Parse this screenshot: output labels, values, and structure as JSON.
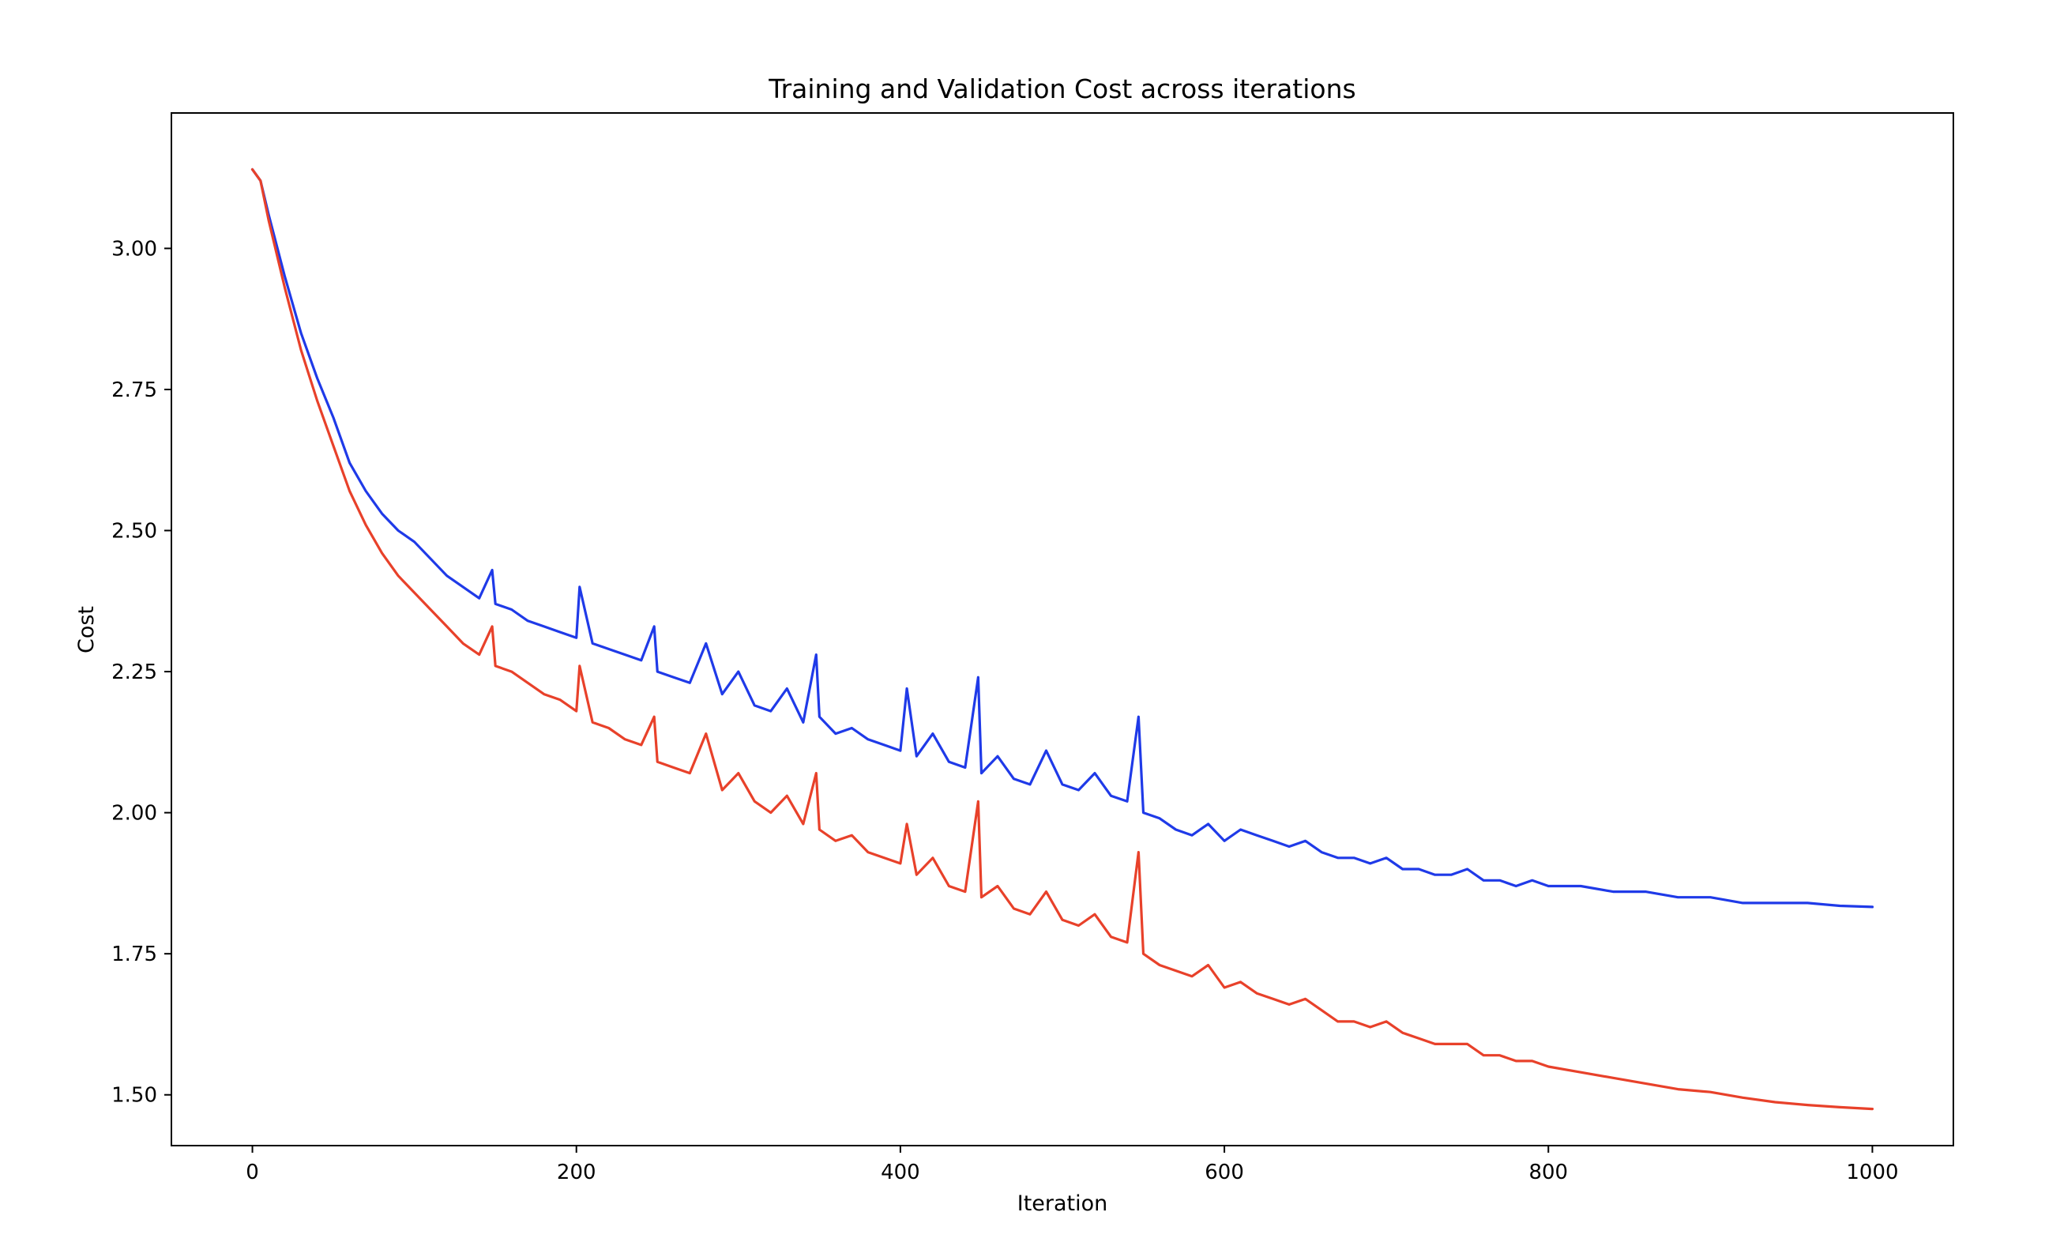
{
  "chart_data": {
    "type": "line",
    "title": "Training and Validation Cost across iterations",
    "xlabel": "Iteration",
    "ylabel": "Cost",
    "xlim": [
      -50,
      1050
    ],
    "ylim": [
      1.41,
      3.24
    ],
    "xticks": [
      0,
      200,
      400,
      600,
      800,
      1000
    ],
    "xtick_labels": [
      "0",
      "200",
      "400",
      "600",
      "800",
      "1000"
    ],
    "yticks": [
      1.5,
      1.75,
      2.0,
      2.25,
      2.5,
      2.75,
      3.0
    ],
    "ytick_labels": [
      "1.50",
      "1.75",
      "2.00",
      "2.25",
      "2.50",
      "2.75",
      "3.00"
    ],
    "grid": false,
    "legend": "none",
    "series": [
      {
        "color": "#1f3ae8",
        "x": [
          0,
          5,
          10,
          20,
          30,
          40,
          50,
          60,
          70,
          80,
          90,
          100,
          110,
          120,
          130,
          140,
          148,
          150,
          160,
          170,
          180,
          190,
          200,
          202,
          210,
          220,
          230,
          240,
          248,
          250,
          260,
          270,
          280,
          290,
          300,
          310,
          320,
          330,
          340,
          348,
          350,
          360,
          370,
          380,
          390,
          400,
          404,
          410,
          420,
          430,
          440,
          448,
          450,
          460,
          470,
          480,
          490,
          500,
          510,
          520,
          530,
          540,
          547,
          550,
          560,
          570,
          580,
          590,
          600,
          610,
          620,
          630,
          640,
          650,
          660,
          670,
          680,
          690,
          700,
          710,
          720,
          730,
          740,
          750,
          760,
          770,
          780,
          790,
          800,
          820,
          840,
          860,
          880,
          900,
          920,
          940,
          960,
          980,
          1000
        ],
        "y": [
          3.14,
          3.12,
          3.06,
          2.95,
          2.85,
          2.77,
          2.7,
          2.62,
          2.57,
          2.53,
          2.5,
          2.48,
          2.45,
          2.42,
          2.4,
          2.38,
          2.43,
          2.37,
          2.36,
          2.34,
          2.33,
          2.32,
          2.31,
          2.4,
          2.3,
          2.29,
          2.28,
          2.27,
          2.33,
          2.25,
          2.24,
          2.23,
          2.3,
          2.21,
          2.25,
          2.19,
          2.18,
          2.22,
          2.16,
          2.28,
          2.17,
          2.14,
          2.15,
          2.13,
          2.12,
          2.11,
          2.22,
          2.1,
          2.14,
          2.09,
          2.08,
          2.24,
          2.07,
          2.1,
          2.06,
          2.05,
          2.11,
          2.05,
          2.04,
          2.07,
          2.03,
          2.02,
          2.17,
          2.0,
          1.99,
          1.97,
          1.96,
          1.98,
          1.95,
          1.97,
          1.96,
          1.95,
          1.94,
          1.95,
          1.93,
          1.92,
          1.92,
          1.91,
          1.92,
          1.9,
          1.9,
          1.89,
          1.89,
          1.9,
          1.88,
          1.88,
          1.87,
          1.88,
          1.87,
          1.87,
          1.86,
          1.86,
          1.85,
          1.85,
          1.84,
          1.84,
          1.84,
          1.835,
          1.833
        ]
      },
      {
        "color": "#e8412a",
        "x": [
          0,
          5,
          10,
          20,
          30,
          40,
          50,
          60,
          70,
          80,
          90,
          100,
          110,
          120,
          130,
          140,
          148,
          150,
          160,
          170,
          180,
          190,
          200,
          202,
          210,
          220,
          230,
          240,
          248,
          250,
          260,
          270,
          280,
          290,
          300,
          310,
          320,
          330,
          340,
          348,
          350,
          360,
          370,
          380,
          390,
          400,
          404,
          410,
          420,
          430,
          440,
          448,
          450,
          460,
          470,
          480,
          490,
          500,
          510,
          520,
          530,
          540,
          547,
          550,
          560,
          570,
          580,
          590,
          600,
          610,
          620,
          630,
          640,
          650,
          660,
          670,
          680,
          690,
          700,
          710,
          720,
          730,
          740,
          750,
          760,
          770,
          780,
          790,
          800,
          820,
          840,
          860,
          880,
          900,
          920,
          940,
          960,
          980,
          1000
        ],
        "y": [
          3.14,
          3.12,
          3.05,
          2.93,
          2.82,
          2.73,
          2.65,
          2.57,
          2.51,
          2.46,
          2.42,
          2.39,
          2.36,
          2.33,
          2.3,
          2.28,
          2.33,
          2.26,
          2.25,
          2.23,
          2.21,
          2.2,
          2.18,
          2.26,
          2.16,
          2.15,
          2.13,
          2.12,
          2.17,
          2.09,
          2.08,
          2.07,
          2.14,
          2.04,
          2.07,
          2.02,
          2.0,
          2.03,
          1.98,
          2.07,
          1.97,
          1.95,
          1.96,
          1.93,
          1.92,
          1.91,
          1.98,
          1.89,
          1.92,
          1.87,
          1.86,
          2.02,
          1.85,
          1.87,
          1.83,
          1.82,
          1.86,
          1.81,
          1.8,
          1.82,
          1.78,
          1.77,
          1.93,
          1.75,
          1.73,
          1.72,
          1.71,
          1.73,
          1.69,
          1.7,
          1.68,
          1.67,
          1.66,
          1.67,
          1.65,
          1.63,
          1.63,
          1.62,
          1.63,
          1.61,
          1.6,
          1.59,
          1.59,
          1.59,
          1.57,
          1.57,
          1.56,
          1.56,
          1.55,
          1.54,
          1.53,
          1.52,
          1.51,
          1.505,
          1.495,
          1.487,
          1.482,
          1.478,
          1.475
        ]
      }
    ]
  }
}
